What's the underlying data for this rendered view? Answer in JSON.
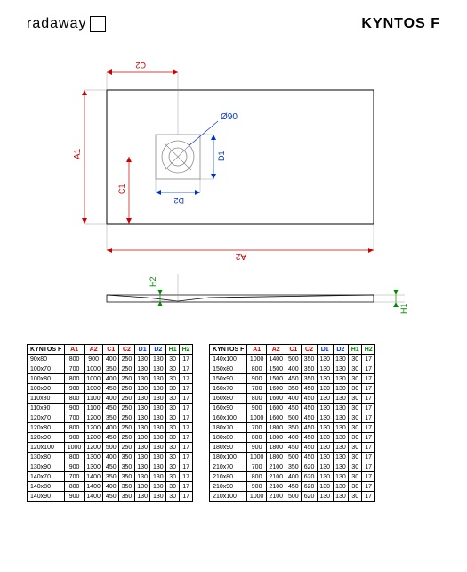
{
  "header": {
    "logo_text": "radaway",
    "title": "KYNTOS F"
  },
  "diagram": {
    "labels": {
      "A1": "A1",
      "A2": "A2",
      "C1": "C1",
      "C2": "C2",
      "D1": "D1",
      "D2": "D2",
      "H1": "H1",
      "H2": "H2",
      "drain": "Ø90"
    },
    "colors": {
      "red": "#cc0000",
      "blue": "#0033cc",
      "green": "#008800",
      "black": "#000000",
      "gray": "#888888"
    }
  },
  "table": {
    "header_label": "KYNTOS F",
    "columns": [
      "A1",
      "A2",
      "C1",
      "C2",
      "D1",
      "D2",
      "H1",
      "H2"
    ],
    "column_colors": [
      "red",
      "red",
      "red",
      "red",
      "blue",
      "blue",
      "green",
      "green"
    ],
    "left_rows": [
      {
        "size": "90x80",
        "v": [
          "800",
          "900",
          "400",
          "250",
          "130",
          "130",
          "30",
          "17"
        ]
      },
      {
        "size": "100x70",
        "v": [
          "700",
          "1000",
          "350",
          "250",
          "130",
          "130",
          "30",
          "17"
        ]
      },
      {
        "size": "100x80",
        "v": [
          "800",
          "1000",
          "400",
          "250",
          "130",
          "130",
          "30",
          "17"
        ]
      },
      {
        "size": "100x90",
        "v": [
          "900",
          "1000",
          "450",
          "250",
          "130",
          "130",
          "30",
          "17"
        ]
      },
      {
        "size": "110x80",
        "v": [
          "800",
          "1100",
          "400",
          "250",
          "130",
          "130",
          "30",
          "17"
        ]
      },
      {
        "size": "110x90",
        "v": [
          "900",
          "1100",
          "450",
          "250",
          "130",
          "130",
          "30",
          "17"
        ]
      },
      {
        "size": "120x70",
        "v": [
          "700",
          "1200",
          "350",
          "250",
          "130",
          "130",
          "30",
          "17"
        ]
      },
      {
        "size": "120x80",
        "v": [
          "800",
          "1200",
          "400",
          "250",
          "130",
          "130",
          "30",
          "17"
        ]
      },
      {
        "size": "120x90",
        "v": [
          "900",
          "1200",
          "450",
          "250",
          "130",
          "130",
          "30",
          "17"
        ]
      },
      {
        "size": "120x100",
        "v": [
          "1000",
          "1200",
          "500",
          "250",
          "130",
          "130",
          "30",
          "17"
        ]
      },
      {
        "size": "130x80",
        "v": [
          "800",
          "1300",
          "400",
          "350",
          "130",
          "130",
          "30",
          "17"
        ]
      },
      {
        "size": "130x90",
        "v": [
          "900",
          "1300",
          "450",
          "350",
          "130",
          "130",
          "30",
          "17"
        ]
      },
      {
        "size": "140x70",
        "v": [
          "700",
          "1400",
          "350",
          "350",
          "130",
          "130",
          "30",
          "17"
        ]
      },
      {
        "size": "140x80",
        "v": [
          "800",
          "1400",
          "400",
          "350",
          "130",
          "130",
          "30",
          "17"
        ]
      },
      {
        "size": "140x90",
        "v": [
          "900",
          "1400",
          "450",
          "350",
          "130",
          "130",
          "30",
          "17"
        ]
      }
    ],
    "right_rows": [
      {
        "size": "140x100",
        "v": [
          "1000",
          "1400",
          "500",
          "350",
          "130",
          "130",
          "30",
          "17"
        ]
      },
      {
        "size": "150x80",
        "v": [
          "800",
          "1500",
          "400",
          "350",
          "130",
          "130",
          "30",
          "17"
        ]
      },
      {
        "size": "150x90",
        "v": [
          "900",
          "1500",
          "450",
          "350",
          "130",
          "130",
          "30",
          "17"
        ]
      },
      {
        "size": "160x70",
        "v": [
          "700",
          "1600",
          "350",
          "450",
          "130",
          "130",
          "30",
          "17"
        ]
      },
      {
        "size": "160x80",
        "v": [
          "800",
          "1600",
          "400",
          "450",
          "130",
          "130",
          "30",
          "17"
        ]
      },
      {
        "size": "160x90",
        "v": [
          "900",
          "1600",
          "450",
          "450",
          "130",
          "130",
          "30",
          "17"
        ]
      },
      {
        "size": "160x100",
        "v": [
          "1000",
          "1600",
          "500",
          "450",
          "130",
          "130",
          "30",
          "17"
        ]
      },
      {
        "size": "180x70",
        "v": [
          "700",
          "1800",
          "350",
          "450",
          "130",
          "130",
          "30",
          "17"
        ]
      },
      {
        "size": "180x80",
        "v": [
          "800",
          "1800",
          "400",
          "450",
          "130",
          "130",
          "30",
          "17"
        ]
      },
      {
        "size": "180x90",
        "v": [
          "900",
          "1800",
          "450",
          "450",
          "130",
          "130",
          "30",
          "17"
        ]
      },
      {
        "size": "180x100",
        "v": [
          "1000",
          "1800",
          "500",
          "450",
          "130",
          "130",
          "30",
          "17"
        ]
      },
      {
        "size": "210x70",
        "v": [
          "700",
          "2100",
          "350",
          "620",
          "130",
          "130",
          "30",
          "17"
        ]
      },
      {
        "size": "210x80",
        "v": [
          "800",
          "2100",
          "400",
          "620",
          "130",
          "130",
          "30",
          "17"
        ]
      },
      {
        "size": "210x90",
        "v": [
          "900",
          "2100",
          "450",
          "620",
          "130",
          "130",
          "30",
          "17"
        ]
      },
      {
        "size": "210x100",
        "v": [
          "1000",
          "2100",
          "500",
          "620",
          "130",
          "130",
          "30",
          "17"
        ]
      }
    ]
  }
}
